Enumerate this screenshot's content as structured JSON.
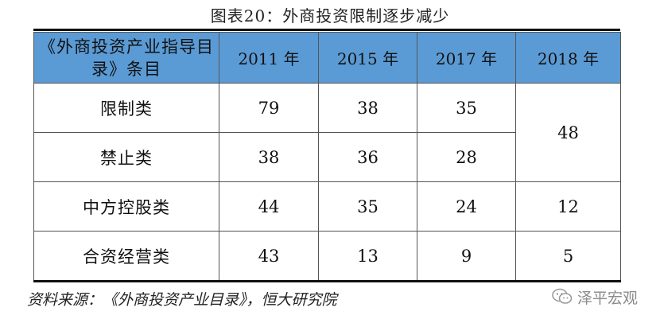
{
  "title": "图表20：外商投资限制逐步减少",
  "table": {
    "header": {
      "col0": "《外商投资产业指导目录》条目",
      "cols": [
        "2011 年",
        "2015 年",
        "2017 年",
        "2018 年"
      ]
    },
    "rows": [
      {
        "label": "限制类",
        "values": [
          "79",
          "38",
          "35"
        ]
      },
      {
        "label": "禁止类",
        "values": [
          "38",
          "36",
          "28"
        ]
      },
      {
        "label": "中方控股类",
        "values": [
          "44",
          "35",
          "24",
          "12"
        ]
      },
      {
        "label": "合资经营类",
        "values": [
          "43",
          "13",
          "9",
          "5"
        ]
      }
    ],
    "merged_2018_restricted_prohibited": "48"
  },
  "source": "资料来源：《外商投资产业目录》，恒大研究院",
  "watermark": {
    "text": "泽平宏观",
    "icon": "wechat-icon"
  },
  "colors": {
    "header_bg": "#5b9bd5",
    "rule": "#111111"
  }
}
